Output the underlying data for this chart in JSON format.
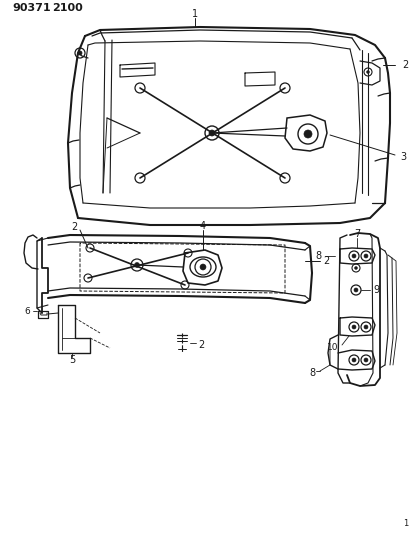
{
  "title": "90371  2100",
  "bg_color": "#ffffff",
  "lc": "#1a1a1a",
  "fig_w": 4.14,
  "fig_h": 5.33,
  "dpi": 100
}
